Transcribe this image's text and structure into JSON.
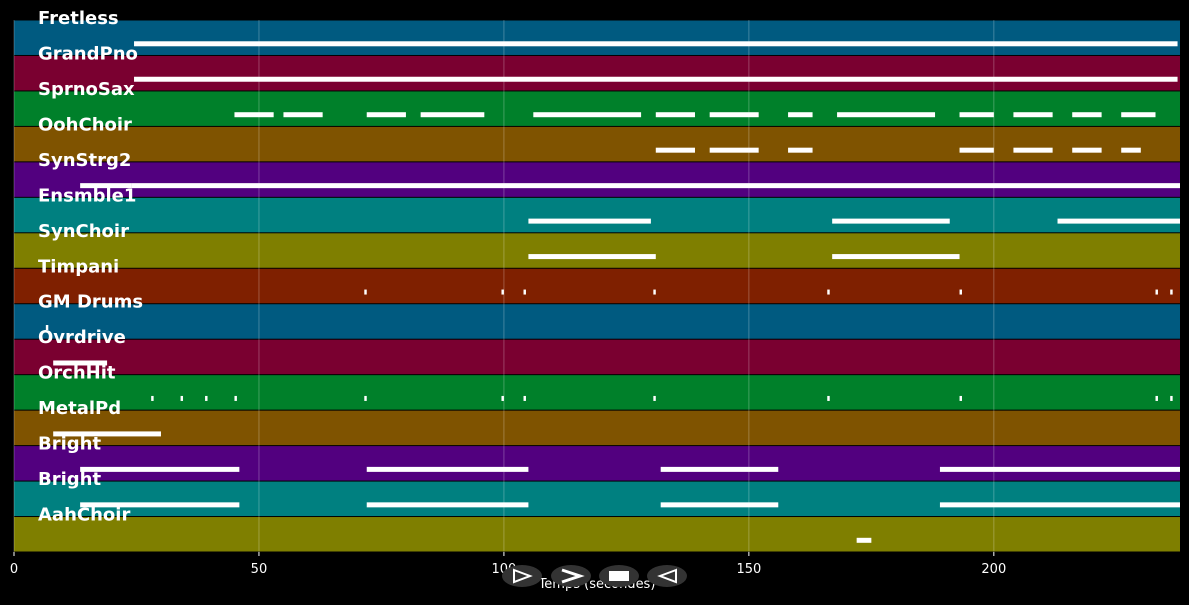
{
  "chart_data": {
    "type": "timeline",
    "x_label": "Temps (secondes)",
    "xlim": [
      0,
      238
    ],
    "xticks": [
      0,
      50,
      100,
      150,
      200
    ],
    "grid": true,
    "tracks": [
      {
        "name": "Fretless",
        "color": "#005a80",
        "segments": [
          [
            24.5,
            237.5
          ]
        ]
      },
      {
        "name": "GrandPno",
        "color": "#7a0030",
        "segments": [
          [
            24.5,
            237.5
          ]
        ]
      },
      {
        "name": "SprnoSax",
        "color": "#00802a",
        "segments": [
          [
            45,
            53
          ],
          [
            55,
            63
          ],
          [
            72,
            80
          ],
          [
            83,
            96
          ],
          [
            106,
            128
          ],
          [
            131,
            139
          ],
          [
            142,
            152
          ],
          [
            158,
            163
          ],
          [
            168,
            188
          ],
          [
            193,
            200
          ],
          [
            204,
            212
          ],
          [
            216,
            222
          ],
          [
            226,
            233
          ]
        ]
      },
      {
        "name": "OohChoir",
        "color": "#7f5300",
        "segments": [
          [
            131,
            139
          ],
          [
            142,
            152
          ],
          [
            158,
            163
          ],
          [
            193,
            200
          ],
          [
            204,
            212
          ],
          [
            216,
            222
          ],
          [
            226,
            230
          ]
        ]
      },
      {
        "name": "SynStrg2",
        "color": "#52007f",
        "segments": [
          [
            13.5,
            24
          ],
          [
            24,
            238
          ]
        ]
      },
      {
        "name": "Ensmble1",
        "color": "#008080",
        "segments": [
          [
            105,
            130
          ],
          [
            167,
            191
          ],
          [
            213,
            238
          ]
        ]
      },
      {
        "name": "SynChoir",
        "color": "#7f7f00",
        "segments": [
          [
            105,
            131
          ],
          [
            167,
            193
          ]
        ]
      },
      {
        "name": "Timpani",
        "color": "#7f2000",
        "segments": [
          [
            71.5,
            72
          ],
          [
            99.5,
            100
          ],
          [
            104,
            104.5
          ],
          [
            130.5,
            131
          ],
          [
            166,
            166.5
          ],
          [
            193,
            193.5
          ],
          [
            233,
            233.5
          ],
          [
            236,
            236.5
          ]
        ]
      },
      {
        "name": "GM Drums",
        "color": "#005a80",
        "segments": [
          [
            6.5,
            7
          ]
        ]
      },
      {
        "name": "Ovrdrive",
        "color": "#7a0030",
        "segments": [
          [
            8,
            19
          ]
        ]
      },
      {
        "name": "OrchHit",
        "color": "#00802a",
        "segments": [
          [
            28,
            28.5
          ],
          [
            34,
            34.5
          ],
          [
            39,
            39.5
          ],
          [
            45,
            45.5
          ],
          [
            71.5,
            72
          ],
          [
            99.5,
            100
          ],
          [
            104,
            104.5
          ],
          [
            130.5,
            131
          ],
          [
            166,
            166.5
          ],
          [
            193,
            193.5
          ],
          [
            233,
            233.5
          ],
          [
            236,
            236.5
          ]
        ]
      },
      {
        "name": "MetalPd",
        "color": "#7f5300",
        "segments": [
          [
            8,
            30
          ]
        ]
      },
      {
        "name": "Bright",
        "color": "#52007f",
        "segments": [
          [
            13.5,
            46
          ],
          [
            72,
            105
          ],
          [
            132,
            156
          ],
          [
            189,
            238
          ]
        ]
      },
      {
        "name": "Bright",
        "color": "#008080",
        "segments": [
          [
            13.5,
            46
          ],
          [
            72,
            105
          ],
          [
            132,
            156
          ],
          [
            189,
            238
          ]
        ]
      },
      {
        "name": "AahChoir",
        "color": "#7f7f00",
        "segments": [
          [
            172,
            175
          ]
        ]
      }
    ]
  }
}
